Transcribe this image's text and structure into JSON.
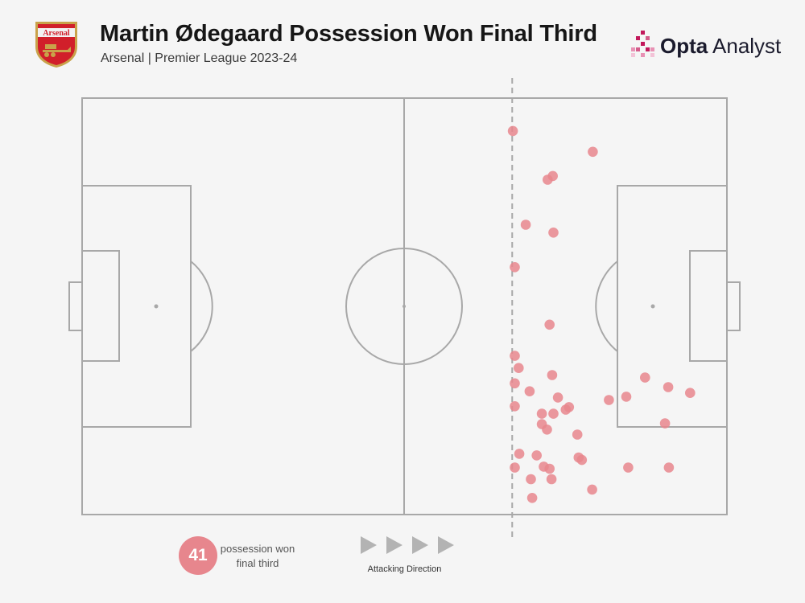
{
  "header": {
    "title": "Martin Ødegaard Possession Won Final Third",
    "subtitle": "Arsenal | Premier League 2023-24",
    "crest_text": "Arsenal",
    "brand_bold": "Opta",
    "brand_light": " Analyst"
  },
  "summary": {
    "count": "41",
    "label": "possession won final third"
  },
  "legend": {
    "direction_label": "Attacking Direction"
  },
  "colors": {
    "background": "#f5f5f5",
    "pitch_lines": "#a8a8a8",
    "marker": "#e7868d",
    "crest_red": "#d11f2a",
    "crest_gold": "#c9a24a",
    "brand_magenta": "#c2185b"
  },
  "chart_data": {
    "type": "scatter",
    "title": "Martin Ødegaard Possession Won Final Third",
    "subtitle": "Arsenal | Premier League 2023-24",
    "pitch": "horizontal, attacking left to right",
    "xlim": [
      0,
      100
    ],
    "ylim": [
      0,
      100
    ],
    "final_third_line_x": 66.7,
    "series": [
      {
        "points": [
          {
            "x": 66.8,
            "y": 92.1
          },
          {
            "x": 79.2,
            "y": 87.1
          },
          {
            "x": 73.0,
            "y": 81.3
          },
          {
            "x": 72.2,
            "y": 80.4
          },
          {
            "x": 68.8,
            "y": 69.6
          },
          {
            "x": 73.1,
            "y": 67.7
          },
          {
            "x": 67.1,
            "y": 59.4
          },
          {
            "x": 72.5,
            "y": 45.6
          },
          {
            "x": 67.1,
            "y": 38.1
          },
          {
            "x": 67.7,
            "y": 35.2
          },
          {
            "x": 72.9,
            "y": 33.5
          },
          {
            "x": 67.1,
            "y": 31.5
          },
          {
            "x": 69.4,
            "y": 29.6
          },
          {
            "x": 73.8,
            "y": 28.1
          },
          {
            "x": 87.3,
            "y": 32.9
          },
          {
            "x": 90.9,
            "y": 30.6
          },
          {
            "x": 94.3,
            "y": 29.2
          },
          {
            "x": 84.4,
            "y": 28.3
          },
          {
            "x": 81.7,
            "y": 27.5
          },
          {
            "x": 67.1,
            "y": 26.0
          },
          {
            "x": 75.5,
            "y": 25.8
          },
          {
            "x": 75.0,
            "y": 25.2
          },
          {
            "x": 71.3,
            "y": 24.2
          },
          {
            "x": 73.1,
            "y": 24.2
          },
          {
            "x": 71.3,
            "y": 21.7
          },
          {
            "x": 72.1,
            "y": 20.4
          },
          {
            "x": 90.4,
            "y": 21.9
          },
          {
            "x": 76.8,
            "y": 19.2
          },
          {
            "x": 67.8,
            "y": 14.6
          },
          {
            "x": 70.5,
            "y": 14.2
          },
          {
            "x": 77.0,
            "y": 13.7
          },
          {
            "x": 77.5,
            "y": 13.1
          },
          {
            "x": 67.1,
            "y": 11.3
          },
          {
            "x": 71.6,
            "y": 11.5
          },
          {
            "x": 72.5,
            "y": 11.0
          },
          {
            "x": 84.7,
            "y": 11.3
          },
          {
            "x": 91.0,
            "y": 11.3
          },
          {
            "x": 69.6,
            "y": 8.5
          },
          {
            "x": 72.8,
            "y": 8.5
          },
          {
            "x": 79.1,
            "y": 6.0
          },
          {
            "x": 69.8,
            "y": 4.0
          }
        ]
      }
    ]
  }
}
